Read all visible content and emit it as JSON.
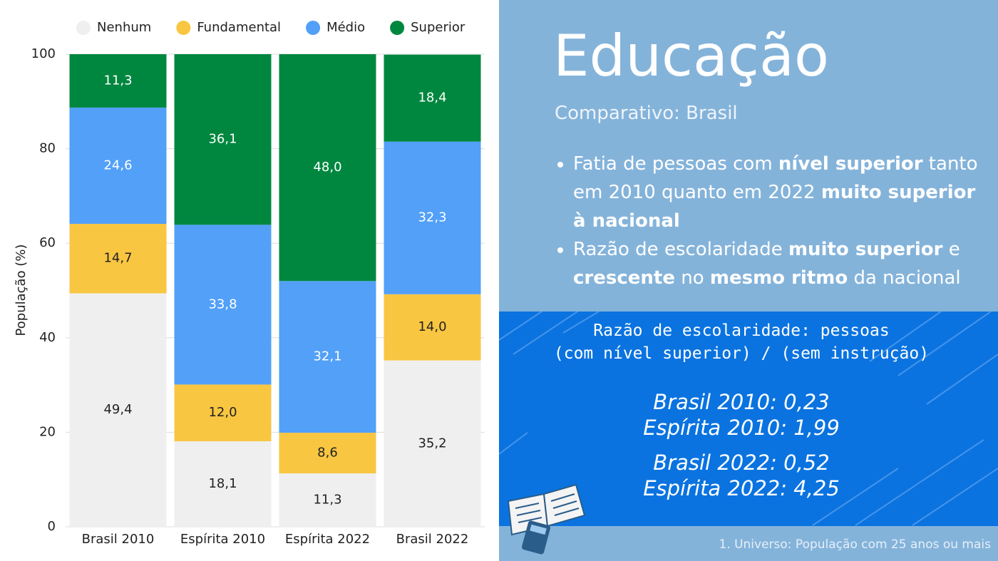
{
  "chart_data": {
    "type": "stacked_bar",
    "categories": [
      "Brasil 2010",
      "Espírita 2010",
      "Espírita 2022",
      "Brasil 2022"
    ],
    "series": [
      {
        "name": "Nenhum",
        "color": "#efefef",
        "values": [
          49.4,
          18.1,
          11.3,
          35.2
        ],
        "value_labels": [
          "49,4",
          "18,1",
          "11,3",
          "35,2"
        ]
      },
      {
        "name": "Fundamental",
        "color": "#f9c642",
        "values": [
          14.7,
          12.0,
          8.6,
          14.0
        ],
        "value_labels": [
          "14,7",
          "12,0",
          "8,6",
          "14,0"
        ]
      },
      {
        "name": "Médio",
        "color": "#52a0f8",
        "values": [
          24.6,
          33.8,
          32.1,
          32.3
        ],
        "value_labels": [
          "24,6",
          "33,8",
          "32,1",
          "32,3"
        ]
      },
      {
        "name": "Superior",
        "color": "#00873f",
        "values": [
          11.3,
          36.1,
          48.0,
          18.4
        ],
        "value_labels": [
          "11,3",
          "36,1",
          "48,0",
          "18,4"
        ]
      }
    ],
    "y_label": "População (%)",
    "ylim": [
      0,
      100
    ],
    "yticks": [
      0,
      20,
      40,
      60,
      80,
      100
    ],
    "grid": true,
    "legend": "top"
  },
  "panel": {
    "title": "Educação",
    "subtitle": "Comparativo: Brasil",
    "bullets": [
      [
        {
          "text": "Fatia de pessoas com ",
          "bold": false
        },
        {
          "text": "nível superior",
          "bold": true
        },
        {
          "text": " tanto em 2010 quanto em 2022 ",
          "bold": false
        },
        {
          "text": "muito superior à nacional",
          "bold": true
        }
      ],
      [
        {
          "text": "Razão de escolaridade ",
          "bold": false
        },
        {
          "text": "muito superior",
          "bold": true
        },
        {
          "text": " e ",
          "bold": false
        },
        {
          "text": "crescente",
          "bold": true
        },
        {
          "text": " no ",
          "bold": false
        },
        {
          "text": "mesmo ritmo",
          "bold": true
        },
        {
          "text": " da nacional",
          "bold": false
        }
      ]
    ],
    "box_heading": [
      "Razão de escolaridade: pessoas",
      "(com nível superior) / (sem instrução)"
    ],
    "ratios": [
      [
        "Brasil 2010: 0,23",
        "Espírita 2010: 1,99"
      ],
      [
        "Brasil 2022: 0,52",
        "Espírita 2022: 4,25"
      ]
    ],
    "footnote": "1. Universo: População com 25 anos ou mais"
  }
}
